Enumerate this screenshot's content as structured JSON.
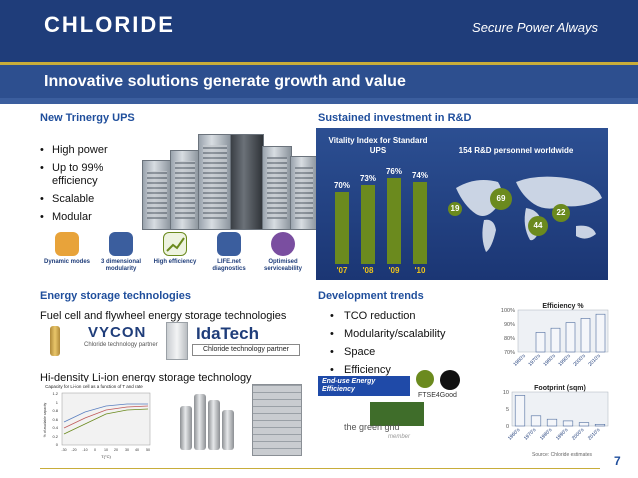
{
  "header": {
    "logo": "CHLORIDE",
    "tagline": "Secure Power Always",
    "title": "Innovative solutions generate growth and value"
  },
  "q1": {
    "heading": "New Trinergy UPS",
    "bullets": [
      "High power",
      "Up to 99% efficiency",
      "Scalable",
      "Modular"
    ],
    "features": [
      {
        "label": "Dynamic modes",
        "icon": "puzzle-icon",
        "color": "#e8a33a"
      },
      {
        "label": "3 dimensional modularity",
        "icon": "cubes-icon",
        "color": "#3b5e9e"
      },
      {
        "label": "High efficiency",
        "icon": "growth-chart-icon",
        "color": "#6b8a1e"
      },
      {
        "label": "LIFE.net diagnostics",
        "icon": "phone-icon",
        "color": "#3b5e9e"
      },
      {
        "label": "Optimised serviceability",
        "icon": "wrench-icon",
        "color": "#7a4ea0"
      }
    ]
  },
  "q2": {
    "heading": "Sustained investment in R&D",
    "vitality_label": "Vitality Index for Standard UPS",
    "personnel_label": "154 R&D personnel worldwide",
    "bars": [
      {
        "year": "'07",
        "value": "70%",
        "pct": 70
      },
      {
        "year": "'08",
        "value": "73%",
        "pct": 73
      },
      {
        "year": "'09",
        "value": "76%",
        "pct": 76
      },
      {
        "year": "'10",
        "value": "74%",
        "pct": 74
      }
    ],
    "bubbles": [
      "69",
      "19",
      "22",
      "44"
    ]
  },
  "q3": {
    "heading": "Energy storage technologies",
    "line1": "Fuel cell and flywheel energy storage technologies",
    "line2": "Hi-density Li-ion energy storage technology",
    "vycon": "VYCON",
    "vycon_sub": "Chloride technology partner",
    "idatech": "IdaTech",
    "idatech_sub": "Chloride technology partner",
    "cap_chart": {
      "title": "Capacity for Li-ion cell as a function of T and rate",
      "ylabel": "% of available capacity",
      "xlabel": "T(°C)",
      "yticks": [
        "1.2",
        "1",
        "0.8",
        "0.6",
        "0.4",
        "0.2",
        "0"
      ],
      "xticks": [
        "-30",
        "-20",
        "-10",
        "0",
        "10",
        "20",
        "30",
        "40",
        "50"
      ]
    }
  },
  "q4": {
    "heading": "Development trends",
    "bullets": [
      "TCO reduction",
      "Modularity/scalability",
      "Space",
      "Efficiency"
    ],
    "logos": {
      "euee_line1": "End-use Energy Efficiency",
      "euee_line2": "EU Code of Conduct on AC Uninterruptible Power Systems",
      "ftse": "FTSE4Good",
      "greengrid": "the green grid",
      "greengrid_sub": "member"
    },
    "source": "Source: Chloride estimates"
  },
  "chart_data": [
    {
      "type": "bar",
      "title": "Efficiency %",
      "categories": [
        "1960's",
        "1970's",
        "1980's",
        "1990's",
        "2000's",
        "2010's"
      ],
      "values": [
        70,
        84,
        87,
        91,
        94,
        97
      ],
      "ylim": [
        70,
        100
      ],
      "yticks": [
        "100%",
        "90%",
        "80%",
        "70%"
      ]
    },
    {
      "type": "bar",
      "title": "Footprint (sqm)",
      "categories": [
        "1960's",
        "1970's",
        "1980's",
        "1990's",
        "2000's",
        "2010's"
      ],
      "values": [
        9,
        3,
        2,
        1.5,
        1,
        0.5
      ],
      "ylim": [
        0,
        10
      ],
      "yticks": [
        "10",
        "5",
        "0"
      ]
    }
  ],
  "page_number": "7",
  "colors": {
    "navy": "#1f3d7a",
    "gold": "#c8ad3a",
    "green": "#6b8a1e",
    "heading_blue": "#1f4e9c"
  }
}
